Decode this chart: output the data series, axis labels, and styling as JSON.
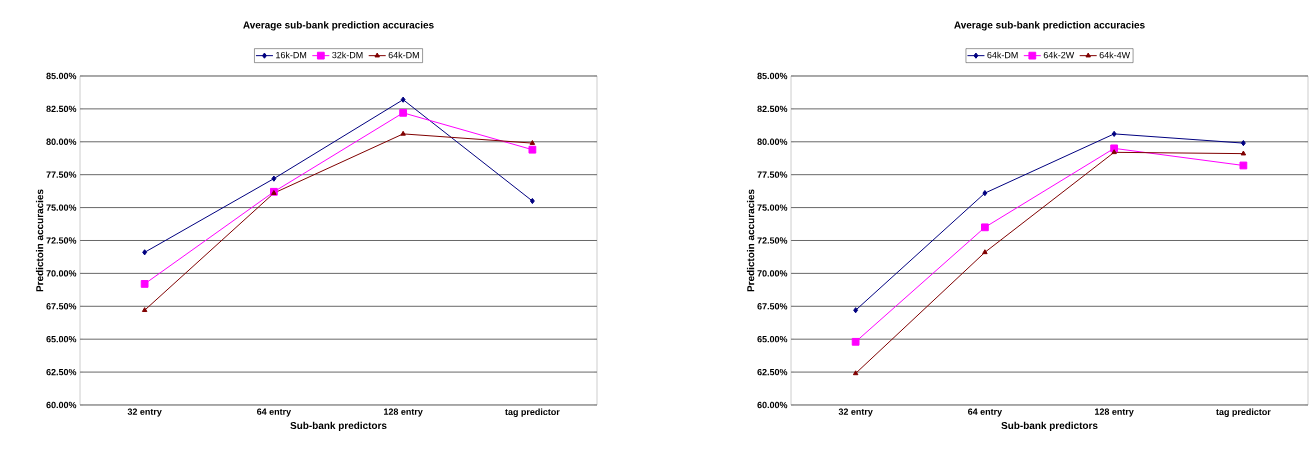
{
  "chart_data": [
    {
      "type": "line",
      "title": "Average sub-bank prediction accuracies",
      "xlabel": "Sub-bank predictors",
      "ylabel": "Predictoin accuracies",
      "categories": [
        "32 entry",
        "64 entry",
        "128 entry",
        "tag predictor"
      ],
      "series": [
        {
          "name": "16k-DM",
          "color": "#000080",
          "marker": "diamond",
          "values": [
            71.6,
            77.2,
            83.2,
            75.5
          ]
        },
        {
          "name": "32k-DM",
          "color": "#ff00ff",
          "marker": "square",
          "values": [
            69.2,
            76.2,
            82.2,
            79.4
          ]
        },
        {
          "name": "64k-DM",
          "color": "#800000",
          "marker": "triangle",
          "values": [
            67.2,
            76.1,
            80.6,
            79.9
          ]
        }
      ],
      "ylim": [
        60,
        85
      ],
      "yticks": [
        {
          "value": 60,
          "label": "60.00%"
        },
        {
          "value": 62.5,
          "label": "62.50%"
        },
        {
          "value": 65,
          "label": "65.00%"
        },
        {
          "value": 67.5,
          "label": "67.50%"
        },
        {
          "value": 70,
          "label": "70.00%"
        },
        {
          "value": 72.5,
          "label": "72.50%"
        },
        {
          "value": 75,
          "label": "75.00%"
        },
        {
          "value": 77.5,
          "label": "77.50%"
        },
        {
          "value": 80,
          "label": "80.00%"
        },
        {
          "value": 82.5,
          "label": "82.50%"
        },
        {
          "value": 85,
          "label": "85.00%"
        }
      ],
      "grid": "y",
      "legend": "top"
    },
    {
      "type": "line",
      "title": "Average sub-bank prediction accuracies",
      "xlabel": "Sub-bank predictors",
      "ylabel": "Predictoin accuracies",
      "categories": [
        "32 entry",
        "64 entry",
        "128 entry",
        "tag predictor"
      ],
      "series": [
        {
          "name": "64k-DM",
          "color": "#000080",
          "marker": "diamond",
          "values": [
            67.2,
            76.1,
            80.6,
            79.9
          ]
        },
        {
          "name": "64k-2W",
          "color": "#ff00ff",
          "marker": "square",
          "values": [
            64.8,
            73.5,
            79.5,
            78.2
          ]
        },
        {
          "name": "64k-4W",
          "color": "#800000",
          "marker": "triangle",
          "values": [
            62.4,
            71.6,
            79.2,
            79.1
          ]
        }
      ],
      "ylim": [
        60,
        85
      ],
      "yticks": [
        {
          "value": 60,
          "label": "60.00%"
        },
        {
          "value": 62.5,
          "label": "62.50%"
        },
        {
          "value": 65,
          "label": "65.00%"
        },
        {
          "value": 67.5,
          "label": "67.50%"
        },
        {
          "value": 70,
          "label": "70.00%"
        },
        {
          "value": 72.5,
          "label": "72.50%"
        },
        {
          "value": 75,
          "label": "75.00%"
        },
        {
          "value": 77.5,
          "label": "77.50%"
        },
        {
          "value": 80,
          "label": "80.00%"
        },
        {
          "value": 82.5,
          "label": "82.50%"
        },
        {
          "value": 85,
          "label": "85.00%"
        }
      ],
      "grid": "y",
      "legend": "top"
    }
  ]
}
